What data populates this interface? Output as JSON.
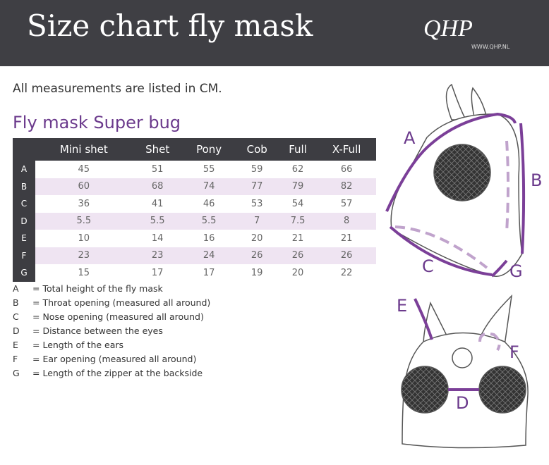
{
  "header": {
    "title": "Size chart fly mask",
    "logo": "QHP",
    "url": "WWW.QHP.NL"
  },
  "intro": "All measurements are listed in CM.",
  "table": {
    "title": "Fly mask Super bug",
    "columns": [
      "Mini shet",
      "Shet",
      "Pony",
      "Cob",
      "Full",
      "X-Full"
    ],
    "rows": [
      {
        "label": "A",
        "values": [
          45,
          51,
          55,
          59,
          62,
          66
        ]
      },
      {
        "label": "B",
        "values": [
          60,
          68,
          74,
          77,
          79,
          82
        ]
      },
      {
        "label": "C",
        "values": [
          36,
          41,
          46,
          53,
          54,
          57
        ]
      },
      {
        "label": "D",
        "values": [
          5.5,
          5.5,
          5.5,
          7,
          7.5,
          8
        ]
      },
      {
        "label": "E",
        "values": [
          10,
          14,
          16,
          20,
          21,
          21
        ]
      },
      {
        "label": "F",
        "values": [
          23,
          23,
          24,
          26,
          26,
          26
        ]
      },
      {
        "label": "G",
        "values": [
          15,
          17,
          17,
          19,
          20,
          22
        ]
      }
    ]
  },
  "legend": [
    {
      "key": "A",
      "text": "= Total height of the fly mask"
    },
    {
      "key": "B",
      "text": "= Throat opening (measured all around)"
    },
    {
      "key": "C",
      "text": "= Nose opening (measured all around)"
    },
    {
      "key": "D",
      "text": "= Distance between the eyes"
    },
    {
      "key": "E",
      "text": "= Length of the ears"
    },
    {
      "key": "F",
      "text": "= Ear opening (measured all around)"
    },
    {
      "key": "G",
      "text": "= Length of the zipper at the backside"
    }
  ],
  "diagram": {
    "labels": [
      "A",
      "B",
      "C",
      "G",
      "E",
      "F",
      "D"
    ]
  }
}
